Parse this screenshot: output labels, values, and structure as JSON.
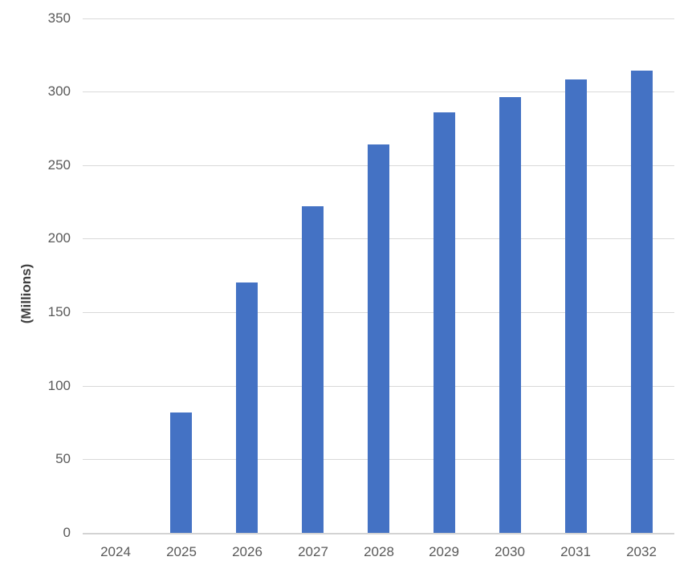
{
  "chart_data": {
    "type": "bar",
    "title": "",
    "xlabel": "",
    "ylabel": "(Millions)",
    "categories": [
      "2024",
      "2025",
      "2026",
      "2027",
      "2028",
      "2029",
      "2030",
      "2031",
      "2032"
    ],
    "values": [
      0,
      82,
      170,
      222,
      264,
      286,
      296,
      308,
      314
    ],
    "ylim": [
      0,
      350
    ],
    "ytick_step": 50,
    "ytick_labels": [
      "0",
      "50",
      "100",
      "150",
      "200",
      "250",
      "300",
      "350"
    ],
    "grid": true,
    "legend": false,
    "colors": {
      "bar": "#4472C4",
      "gridline": "#D9D9D9",
      "axis_line": "#D3D3D3",
      "tick_label": "#595959",
      "axis_title": "#404040",
      "background": "#FFFFFF"
    }
  }
}
